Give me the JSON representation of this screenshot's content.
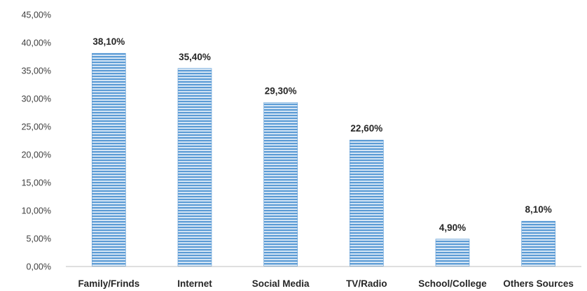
{
  "chart_data": {
    "type": "bar",
    "categories": [
      "Family/Frinds",
      "Internet",
      "Social Media",
      "TV/Radio",
      "School/College",
      "Others Sources"
    ],
    "values": [
      38.1,
      35.4,
      29.3,
      22.6,
      4.9,
      8.1
    ],
    "value_labels": [
      "38,10%",
      "35,40%",
      "29,30%",
      "22,60%",
      "4,90%",
      "8,10%"
    ],
    "title": "",
    "xlabel": "",
    "ylabel": "",
    "ylim": [
      0,
      45
    ],
    "yticks": [
      0,
      5,
      10,
      15,
      20,
      25,
      30,
      35,
      40,
      45
    ],
    "ytick_labels": [
      "0,00%",
      "5,00%",
      "10,00%",
      "15,00%",
      "20,00%",
      "25,00%",
      "30,00%",
      "35,00%",
      "40,00%",
      "45,00%"
    ],
    "grid": false,
    "legend": "none",
    "bar_color": "#5b9bd5",
    "bar_stripe_color": "#ffffff"
  }
}
